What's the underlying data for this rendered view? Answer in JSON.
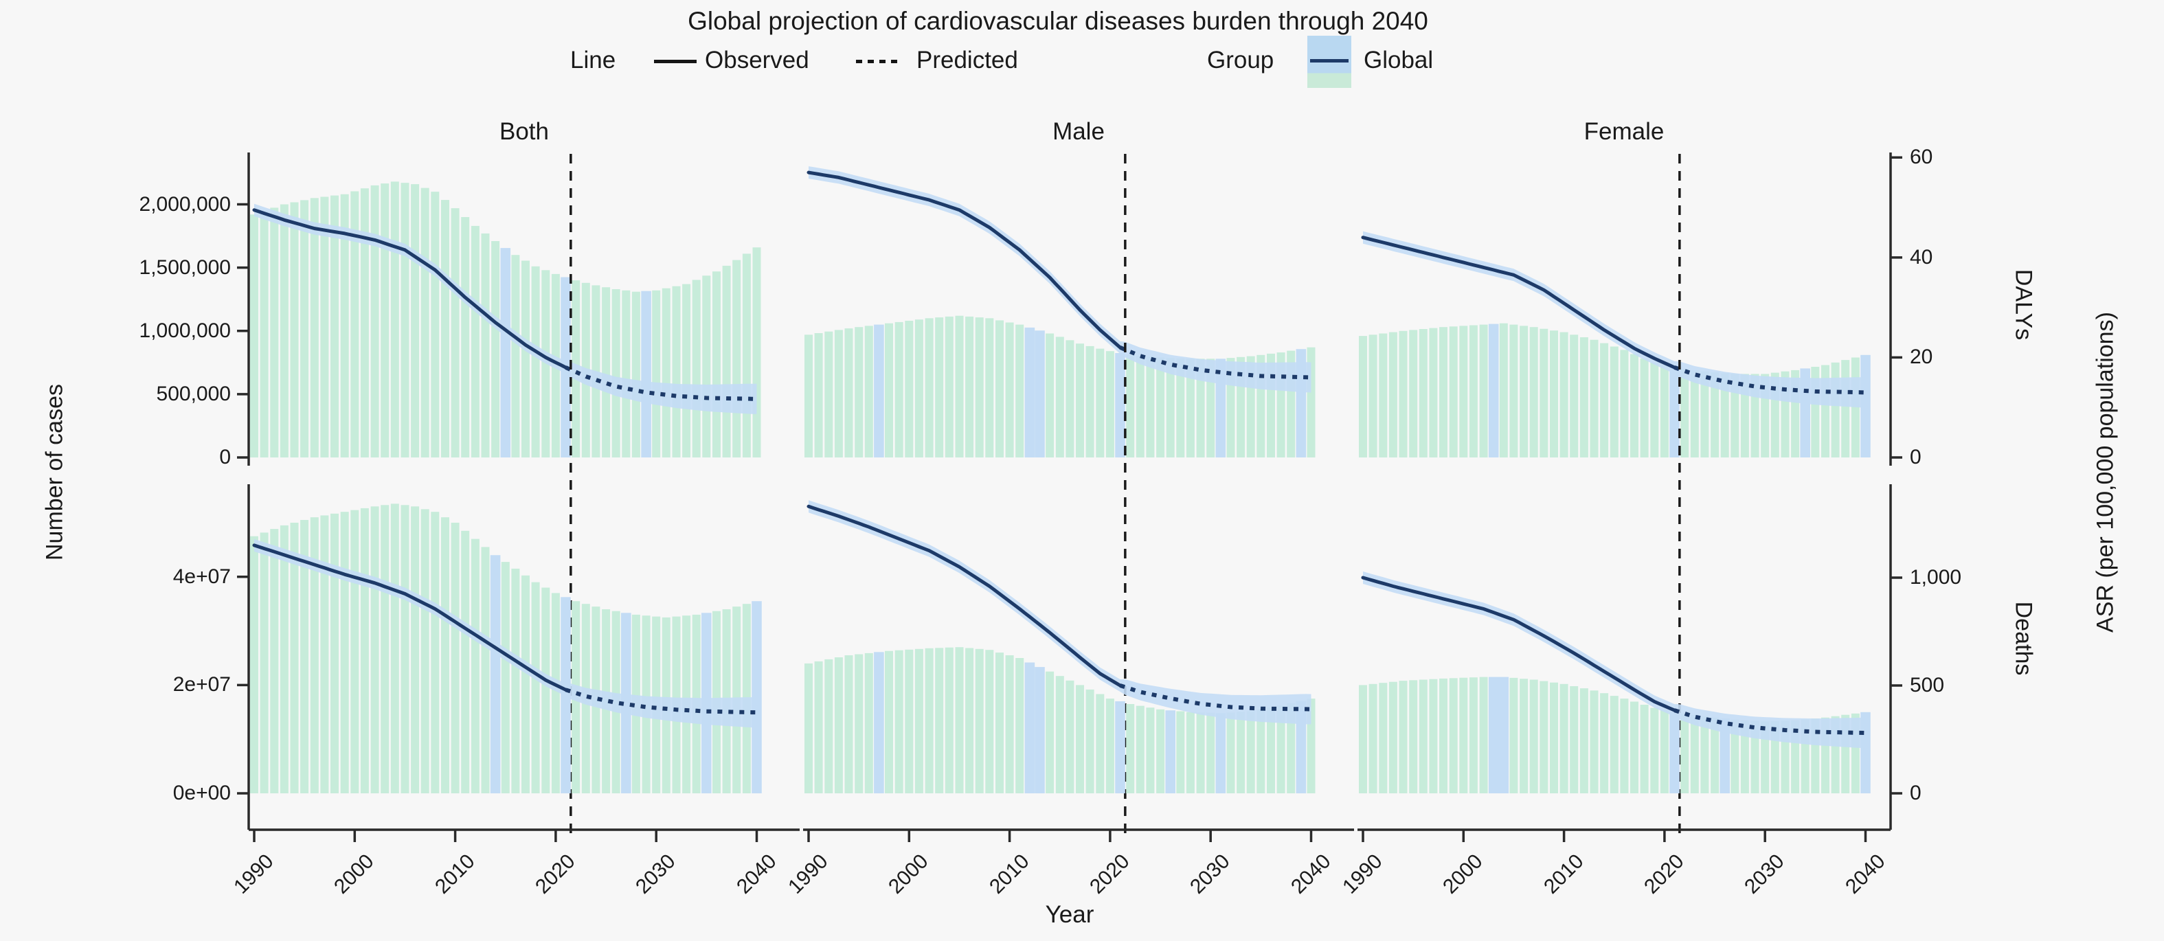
{
  "title": "Global projection of cardiovascular diseases burden through 2040",
  "legend": {
    "line_label": "Line",
    "observed_label": "Observed",
    "predicted_label": "Predicted",
    "group_label": "Group",
    "group_key_label": "Global"
  },
  "axes": {
    "x_label": "Year",
    "x_tick_labels": [
      "1990",
      "2000",
      "2010",
      "2020",
      "2030",
      "2040"
    ],
    "left_label": "Number of cases",
    "right_outer_label": "ASR (per 100,000 populations)",
    "row1_left_tick_labels": [
      "0",
      "500,000",
      "1,000,000",
      "1,500,000",
      "2,000,000"
    ],
    "row1_right_tick_labels": [
      "0",
      "20",
      "40",
      "60"
    ],
    "row1_right_label": "DALYs",
    "row2_left_tick_labels": [
      "0e+00",
      "2e+07",
      "4e+07"
    ],
    "row2_right_tick_labels": [
      "0",
      "500",
      "1,000"
    ],
    "row2_right_label": "Deaths"
  },
  "colors": {
    "background": "#f7f7f7",
    "bar_green": "#c7ecda",
    "bar_blue": "#c3dcf5",
    "ribbon_blue": "#c3dcf5",
    "line_navy": "#1d3a68",
    "dashed_divider": "#1a1a1a",
    "axis": "#2a2a2a",
    "text": "#1a1a1a"
  },
  "chart_data": {
    "type": "faceted bar+line dual-axis",
    "x": {
      "label": "Year",
      "ticks": [
        1990,
        2000,
        2010,
        2020,
        2030,
        2040
      ],
      "range": [
        1990,
        2040
      ]
    },
    "facet_cols": [
      "Both",
      "Male",
      "Female"
    ],
    "facet_rows": [
      {
        "name": "DALYs",
        "bars_axis_ticks": [
          0,
          500000,
          1000000,
          1500000,
          2000000
        ],
        "line_axis_ticks": [
          0,
          20,
          40,
          60
        ]
      },
      {
        "name": "Deaths",
        "bars_axis_ticks": [
          0,
          20000000,
          40000000
        ],
        "line_axis_ticks": [
          0,
          500,
          1000
        ]
      }
    ],
    "observed_until": 2021,
    "predicted_from": 2022,
    "dashed_vline_year": 2021.5,
    "legend_note": "bars = Number of cases (left axis), line = ASR per 100,000 (right axis)",
    "panels": [
      {
        "row": "DALYs",
        "col": "Both",
        "bars_cases": [
          [
            1990,
            1920000
          ],
          [
            1993,
            2000000
          ],
          [
            1996,
            2050000
          ],
          [
            1999,
            2080000
          ],
          [
            2002,
            2150000
          ],
          [
            2004,
            2180000
          ],
          [
            2006,
            2160000
          ],
          [
            2008,
            2100000
          ],
          [
            2010,
            1970000
          ],
          [
            2012,
            1830000
          ],
          [
            2014,
            1710000
          ],
          [
            2016,
            1600000
          ],
          [
            2018,
            1510000
          ],
          [
            2020,
            1450000
          ],
          [
            2022,
            1400000
          ],
          [
            2024,
            1360000
          ],
          [
            2026,
            1330000
          ],
          [
            2028,
            1310000
          ],
          [
            2030,
            1320000
          ],
          [
            2033,
            1370000
          ],
          [
            2036,
            1470000
          ],
          [
            2038,
            1560000
          ],
          [
            2040,
            1660000
          ]
        ],
        "line_asr_observed": [
          [
            1990,
            49.5
          ],
          [
            1993,
            47.5
          ],
          [
            1996,
            45.8
          ],
          [
            1999,
            44.8
          ],
          [
            2002,
            43.5
          ],
          [
            2005,
            41.5
          ],
          [
            2008,
            37.5
          ],
          [
            2011,
            32
          ],
          [
            2014,
            27
          ],
          [
            2017,
            22.5
          ],
          [
            2019,
            20
          ],
          [
            2021,
            18
          ]
        ],
        "line_asr_predicted": [
          [
            2021,
            18
          ],
          [
            2023,
            16.2
          ],
          [
            2026,
            14.2
          ],
          [
            2029,
            13
          ],
          [
            2032,
            12.3
          ],
          [
            2035,
            11.9
          ],
          [
            2040,
            11.7
          ]
        ],
        "highlight_blue_years": [
          2015,
          2021,
          2029
        ]
      },
      {
        "row": "DALYs",
        "col": "Male",
        "bars_cases": [
          [
            1990,
            970000
          ],
          [
            1994,
            1020000
          ],
          [
            1998,
            1060000
          ],
          [
            2002,
            1100000
          ],
          [
            2005,
            1120000
          ],
          [
            2008,
            1100000
          ],
          [
            2011,
            1050000
          ],
          [
            2014,
            980000
          ],
          [
            2017,
            900000
          ],
          [
            2020,
            840000
          ],
          [
            2022,
            810000
          ],
          [
            2025,
            790000
          ],
          [
            2028,
            780000
          ],
          [
            2031,
            780000
          ],
          [
            2034,
            800000
          ],
          [
            2037,
            830000
          ],
          [
            2040,
            870000
          ]
        ],
        "line_asr_observed": [
          [
            1990,
            57
          ],
          [
            1993,
            56
          ],
          [
            1996,
            54.5
          ],
          [
            1999,
            53
          ],
          [
            2002,
            51.5
          ],
          [
            2005,
            49.5
          ],
          [
            2008,
            46
          ],
          [
            2011,
            41.5
          ],
          [
            2014,
            36
          ],
          [
            2017,
            29.5
          ],
          [
            2019,
            25.5
          ],
          [
            2021,
            22
          ]
        ],
        "line_asr_predicted": [
          [
            2021,
            22
          ],
          [
            2023,
            20.3
          ],
          [
            2026,
            18.6
          ],
          [
            2029,
            17.5
          ],
          [
            2032,
            16.8
          ],
          [
            2035,
            16.3
          ],
          [
            2040,
            16
          ]
        ],
        "highlight_blue_years": [
          1997,
          2012,
          2013,
          2021,
          2031,
          2039
        ]
      },
      {
        "row": "DALYs",
        "col": "Female",
        "bars_cases": [
          [
            1990,
            960000
          ],
          [
            1994,
            1000000
          ],
          [
            1998,
            1030000
          ],
          [
            2002,
            1050000
          ],
          [
            2004,
            1060000
          ],
          [
            2007,
            1030000
          ],
          [
            2010,
            990000
          ],
          [
            2013,
            930000
          ],
          [
            2016,
            850000
          ],
          [
            2019,
            750000
          ],
          [
            2021,
            710000
          ],
          [
            2024,
            680000
          ],
          [
            2027,
            660000
          ],
          [
            2030,
            660000
          ],
          [
            2033,
            690000
          ],
          [
            2036,
            730000
          ],
          [
            2040,
            810000
          ]
        ],
        "line_asr_observed": [
          [
            1990,
            44
          ],
          [
            1993,
            42.5
          ],
          [
            1996,
            41
          ],
          [
            1999,
            39.5
          ],
          [
            2002,
            38
          ],
          [
            2005,
            36.5
          ],
          [
            2008,
            33.5
          ],
          [
            2011,
            29.5
          ],
          [
            2014,
            25.5
          ],
          [
            2017,
            21.8
          ],
          [
            2019,
            19.8
          ],
          [
            2021,
            18
          ]
        ],
        "line_asr_predicted": [
          [
            2021,
            18
          ],
          [
            2023,
            16.6
          ],
          [
            2026,
            15.2
          ],
          [
            2029,
            14.2
          ],
          [
            2032,
            13.6
          ],
          [
            2035,
            13.2
          ],
          [
            2040,
            13
          ]
        ],
        "highlight_blue_years": [
          2003,
          2021,
          2034,
          2040
        ]
      },
      {
        "row": "Deaths",
        "col": "Both",
        "bars_cases": [
          [
            1990,
            47500000
          ],
          [
            1993,
            49500000
          ],
          [
            1996,
            51000000
          ],
          [
            1999,
            52000000
          ],
          [
            2002,
            53000000
          ],
          [
            2004,
            53500000
          ],
          [
            2006,
            53000000
          ],
          [
            2008,
            52000000
          ],
          [
            2010,
            50000000
          ],
          [
            2012,
            47000000
          ],
          [
            2014,
            44000000
          ],
          [
            2016,
            41500000
          ],
          [
            2018,
            39000000
          ],
          [
            2020,
            37000000
          ],
          [
            2022,
            35500000
          ],
          [
            2025,
            34000000
          ],
          [
            2028,
            33000000
          ],
          [
            2031,
            32500000
          ],
          [
            2034,
            33000000
          ],
          [
            2037,
            34000000
          ],
          [
            2040,
            35500000
          ]
        ],
        "line_asr_observed": [
          [
            1990,
            1150
          ],
          [
            1993,
            1105
          ],
          [
            1996,
            1060
          ],
          [
            1999,
            1015
          ],
          [
            2002,
            975
          ],
          [
            2005,
            925
          ],
          [
            2008,
            855
          ],
          [
            2011,
            765
          ],
          [
            2014,
            675
          ],
          [
            2017,
            585
          ],
          [
            2019,
            525
          ],
          [
            2021,
            480
          ]
        ],
        "line_asr_predicted": [
          [
            2021,
            480
          ],
          [
            2023,
            450
          ],
          [
            2026,
            420
          ],
          [
            2029,
            400
          ],
          [
            2032,
            388
          ],
          [
            2035,
            380
          ],
          [
            2040,
            375
          ]
        ],
        "highlight_blue_years": [
          2014,
          2021,
          2027,
          2035,
          2040
        ]
      },
      {
        "row": "Deaths",
        "col": "Male",
        "bars_cases": [
          [
            1990,
            24000000
          ],
          [
            1994,
            25500000
          ],
          [
            1998,
            26300000
          ],
          [
            2002,
            26800000
          ],
          [
            2005,
            27000000
          ],
          [
            2008,
            26500000
          ],
          [
            2011,
            25000000
          ],
          [
            2014,
            22500000
          ],
          [
            2017,
            20000000
          ],
          [
            2020,
            17500000
          ],
          [
            2022,
            16500000
          ],
          [
            2025,
            15500000
          ],
          [
            2028,
            15000000
          ],
          [
            2031,
            14800000
          ],
          [
            2034,
            15200000
          ],
          [
            2037,
            16200000
          ],
          [
            2040,
            17500000
          ]
        ],
        "line_asr_observed": [
          [
            1990,
            1330
          ],
          [
            1993,
            1285
          ],
          [
            1996,
            1235
          ],
          [
            1999,
            1180
          ],
          [
            2002,
            1125
          ],
          [
            2005,
            1050
          ],
          [
            2008,
            960
          ],
          [
            2011,
            855
          ],
          [
            2014,
            745
          ],
          [
            2017,
            630
          ],
          [
            2019,
            555
          ],
          [
            2021,
            500
          ]
        ],
        "line_asr_predicted": [
          [
            2021,
            500
          ],
          [
            2023,
            470
          ],
          [
            2026,
            440
          ],
          [
            2029,
            415
          ],
          [
            2032,
            400
          ],
          [
            2035,
            393
          ],
          [
            2040,
            390
          ]
        ],
        "highlight_blue_years": [
          1997,
          2012,
          2013,
          2021,
          2026,
          2031,
          2039
        ]
      },
      {
        "row": "Deaths",
        "col": "Female",
        "bars_cases": [
          [
            1990,
            20000000
          ],
          [
            1994,
            20800000
          ],
          [
            1998,
            21200000
          ],
          [
            2002,
            21500000
          ],
          [
            2004,
            21500000
          ],
          [
            2007,
            21000000
          ],
          [
            2010,
            20200000
          ],
          [
            2013,
            19000000
          ],
          [
            2016,
            17500000
          ],
          [
            2019,
            15800000
          ],
          [
            2021,
            15000000
          ],
          [
            2024,
            14200000
          ],
          [
            2027,
            13600000
          ],
          [
            2030,
            13300000
          ],
          [
            2033,
            13500000
          ],
          [
            2036,
            14000000
          ],
          [
            2040,
            15000000
          ]
        ],
        "line_asr_observed": [
          [
            1990,
            1000
          ],
          [
            1993,
            960
          ],
          [
            1996,
            925
          ],
          [
            1999,
            890
          ],
          [
            2002,
            855
          ],
          [
            2005,
            805
          ],
          [
            2008,
            730
          ],
          [
            2011,
            650
          ],
          [
            2014,
            565
          ],
          [
            2017,
            480
          ],
          [
            2019,
            425
          ],
          [
            2021,
            385
          ]
        ],
        "line_asr_predicted": [
          [
            2021,
            385
          ],
          [
            2023,
            355
          ],
          [
            2026,
            325
          ],
          [
            2029,
            305
          ],
          [
            2032,
            293
          ],
          [
            2035,
            285
          ],
          [
            2040,
            280
          ]
        ],
        "highlight_blue_years": [
          2003,
          2004,
          2021,
          2026,
          2040
        ]
      }
    ]
  }
}
